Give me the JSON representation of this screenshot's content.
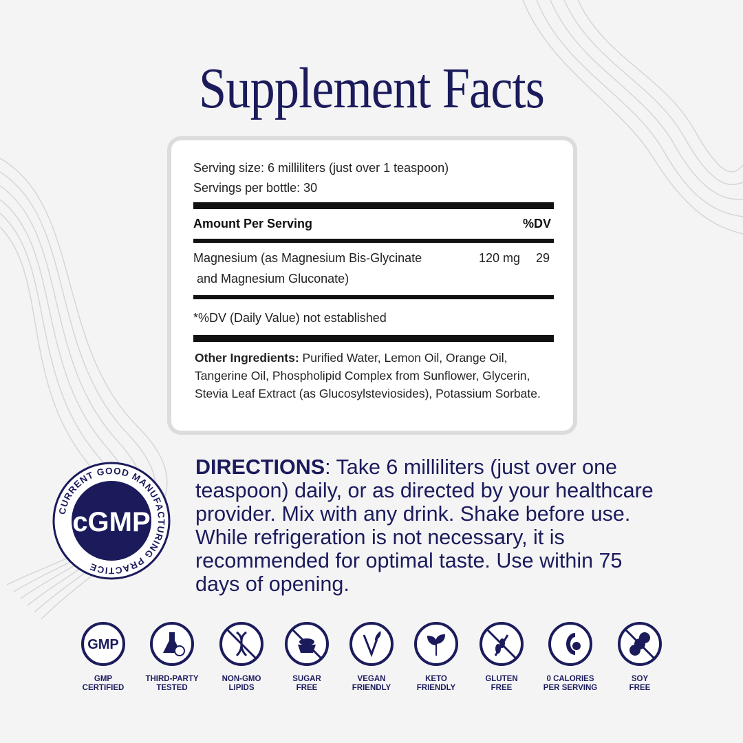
{
  "title": "Supplement Facts",
  "facts": {
    "serving_size": "Serving size: 6 milliliters (just over 1 teaspoon)",
    "servings_per_bottle": "Servings per bottle: 30",
    "header_amount": "Amount Per Serving",
    "header_dv": "%DV",
    "nutrient_line1": "Magnesium (as Magnesium Bis-Glycinate",
    "nutrient_line2": "and Magnesium Gluconate)",
    "nutrient_amount": "120 mg",
    "nutrient_dv": "29",
    "footnote": "*%DV (Daily Value) not established",
    "other_label": "Other Ingredients:",
    "other_text": " Purified Water, Lemon Oil, Orange Oil, Tangerine Oil, Phospholipid Complex from Sunflower, Glycerin, Stevia Leaf Extract (as Glucosylsteviosides), Potassium Sorbate."
  },
  "directions": {
    "label": "DIRECTIONS",
    "text": ": Take 6 milliliters  (just over one teaspoon) daily, or as directed by your healthcare provider. Mix with any drink. Shake before use. While refrigeration is not necessary, it is recommended for optimal taste. Use within 75 days of opening."
  },
  "badge": {
    "center": "cGMP",
    "ring": "CURRENT GOOD MANUFACTURING PRACTICE"
  },
  "icons": [
    {
      "name": "gmp-icon",
      "l1": "GMP",
      "l2": "CERTIFIED"
    },
    {
      "name": "flask-icon",
      "l1": "THIRD-PARTY",
      "l2": "TESTED"
    },
    {
      "name": "dna-icon",
      "l1": "NON-GMO",
      "l2": "LIPIDS"
    },
    {
      "name": "sugar-bowl-icon",
      "l1": "SUGAR",
      "l2": "FREE"
    },
    {
      "name": "vegan-icon",
      "l1": "VEGAN",
      "l2": "FRIENDLY"
    },
    {
      "name": "leaf-icon",
      "l1": "KETO",
      "l2": "FRIENDLY"
    },
    {
      "name": "wheat-icon",
      "l1": "GLUTEN",
      "l2": "FREE"
    },
    {
      "name": "calorie-icon",
      "l1": "0 CALORIES",
      "l2": "PER SERVING"
    },
    {
      "name": "soy-icon",
      "l1": "SOY",
      "l2": "FREE"
    }
  ],
  "colors": {
    "navy": "#1b1b5c",
    "background": "#f4f4f5"
  }
}
